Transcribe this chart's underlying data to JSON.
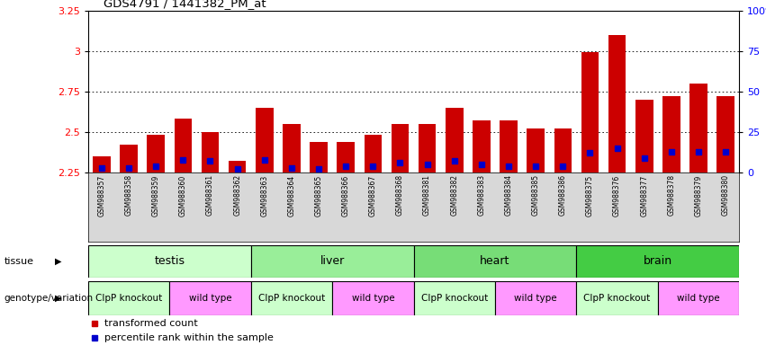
{
  "title": "GDS4791 / 1441382_PM_at",
  "samples": [
    "GSM988357",
    "GSM988358",
    "GSM988359",
    "GSM988360",
    "GSM988361",
    "GSM988362",
    "GSM988363",
    "GSM988364",
    "GSM988365",
    "GSM988366",
    "GSM988367",
    "GSM988368",
    "GSM988381",
    "GSM988382",
    "GSM988383",
    "GSM988384",
    "GSM988385",
    "GSM988386",
    "GSM988375",
    "GSM988376",
    "GSM988377",
    "GSM988378",
    "GSM988379",
    "GSM988380"
  ],
  "bar_values": [
    2.35,
    2.42,
    2.48,
    2.58,
    2.5,
    2.32,
    2.65,
    2.55,
    2.44,
    2.44,
    2.48,
    2.55,
    2.55,
    2.65,
    2.57,
    2.57,
    2.52,
    2.52,
    2.99,
    3.1,
    2.7,
    2.72,
    2.8,
    2.72
  ],
  "blue_dot_values": [
    2.28,
    2.28,
    2.29,
    2.33,
    2.32,
    2.27,
    2.33,
    2.28,
    2.27,
    2.29,
    2.29,
    2.31,
    2.3,
    2.32,
    2.3,
    2.29,
    2.29,
    2.29,
    2.37,
    2.4,
    2.34,
    2.38,
    2.38,
    2.38
  ],
  "ymin": 2.25,
  "ymax": 3.25,
  "yticks": [
    2.25,
    2.5,
    2.75,
    3.0,
    3.25
  ],
  "right_yticks": [
    0,
    25,
    50,
    75,
    100
  ],
  "bar_color": "#cc0000",
  "dot_color": "#0000cc",
  "tissues": [
    {
      "label": "testis",
      "start": 0,
      "end": 6,
      "color": "#ccffcc"
    },
    {
      "label": "liver",
      "start": 6,
      "end": 12,
      "color": "#99ee99"
    },
    {
      "label": "heart",
      "start": 12,
      "end": 18,
      "color": "#77dd77"
    },
    {
      "label": "brain",
      "start": 18,
      "end": 24,
      "color": "#44cc44"
    }
  ],
  "genotypes": [
    {
      "label": "ClpP knockout",
      "start": 0,
      "end": 3,
      "color": "#ccffcc"
    },
    {
      "label": "wild type",
      "start": 3,
      "end": 6,
      "color": "#ff99ff"
    },
    {
      "label": "ClpP knockout",
      "start": 6,
      "end": 9,
      "color": "#ccffcc"
    },
    {
      "label": "wild type",
      "start": 9,
      "end": 12,
      "color": "#ff99ff"
    },
    {
      "label": "ClpP knockout",
      "start": 12,
      "end": 15,
      "color": "#ccffcc"
    },
    {
      "label": "wild type",
      "start": 15,
      "end": 18,
      "color": "#ff99ff"
    },
    {
      "label": "ClpP knockout",
      "start": 18,
      "end": 21,
      "color": "#ccffcc"
    },
    {
      "label": "wild type",
      "start": 21,
      "end": 24,
      "color": "#ff99ff"
    }
  ],
  "legend_items": [
    {
      "label": "transformed count",
      "color": "#cc0000"
    },
    {
      "label": "percentile rank within the sample",
      "color": "#0000cc"
    }
  ],
  "xtick_bg": "#d8d8d8",
  "fig_bg": "#ffffff"
}
